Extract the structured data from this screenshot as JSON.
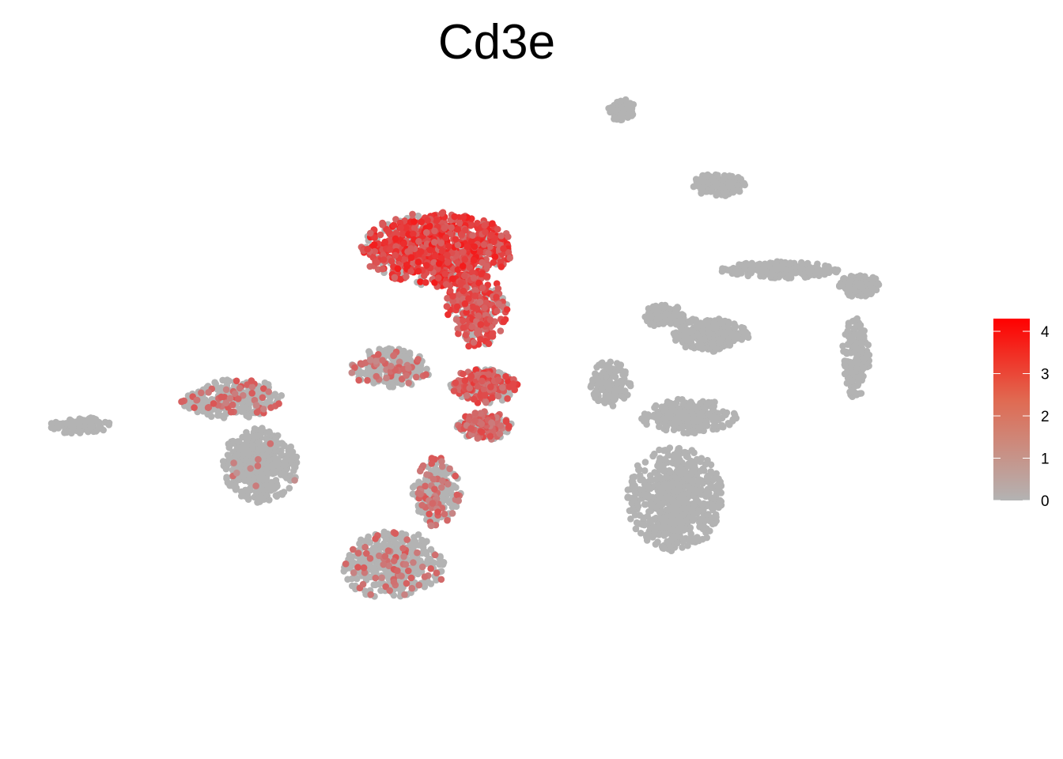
{
  "chart_data": {
    "type": "scatter",
    "title": "Cd3e",
    "xlabel": "",
    "ylabel": "",
    "grid": false,
    "axes_visible": false,
    "legend": {
      "position": "right",
      "type": "colorbar",
      "min": 0,
      "max": 4.3,
      "ticks": [
        0,
        1,
        2,
        3,
        4
      ],
      "tick_labels": [
        "0",
        "1",
        "2",
        "3",
        "4"
      ],
      "low_color": "#b3b3b3",
      "high_color": "#ff0000"
    },
    "xlim": [
      -10,
      12
    ],
    "ylim": [
      -10,
      10
    ],
    "clusters": [
      {
        "name": "",
        "center": [
          -2.2,
          5.2
        ],
        "spread": [
          2.2,
          1.3
        ],
        "n": 900,
        "expr": 3.2,
        "expr_frac": 0.85
      },
      {
        "name": "",
        "center": [
          -1.1,
          3.2
        ],
        "spread": [
          0.9,
          1.3
        ],
        "n": 300,
        "expr": 2.8,
        "expr_frac": 0.7
      },
      {
        "name": "",
        "center": [
          -0.9,
          0.7
        ],
        "spread": [
          1.0,
          0.6
        ],
        "n": 260,
        "expr": 2.6,
        "expr_frac": 0.55
      },
      {
        "name": "",
        "center": [
          -3.5,
          1.3
        ],
        "spread": [
          1.2,
          0.7
        ],
        "n": 260,
        "expr": 1.8,
        "expr_frac": 0.2
      },
      {
        "name": "",
        "center": [
          -0.9,
          -0.6
        ],
        "spread": [
          0.8,
          0.5
        ],
        "n": 160,
        "expr": 2.3,
        "expr_frac": 0.6
      },
      {
        "name": "",
        "center": [
          -3.4,
          -5.2
        ],
        "spread": [
          1.5,
          1.2
        ],
        "n": 420,
        "expr": 2.0,
        "expr_frac": 0.15
      },
      {
        "name": "",
        "center": [
          -2.2,
          -2.8
        ],
        "spread": [
          0.7,
          1.2
        ],
        "n": 240,
        "expr": 2.0,
        "expr_frac": 0.25
      },
      {
        "name": "",
        "center": [
          -7.1,
          -1.9
        ],
        "spread": [
          1.1,
          1.3
        ],
        "n": 480,
        "expr": 1.5,
        "expr_frac": 0.03
      },
      {
        "name": "",
        "center": [
          -7.9,
          0.3
        ],
        "spread": [
          1.5,
          0.7
        ],
        "n": 260,
        "expr": 2.0,
        "expr_frac": 0.2
      },
      {
        "name": "",
        "center": [
          -12.1,
          -0.6
        ],
        "spread": [
          0.9,
          0.3
        ],
        "n": 120,
        "expr": 1.0,
        "expr_frac": 0.0
      },
      {
        "name": "",
        "center": [
          4.4,
          -3.0
        ],
        "spread": [
          1.4,
          1.8
        ],
        "n": 700,
        "expr": 0,
        "expr_frac": 0.0
      },
      {
        "name": "",
        "center": [
          4.8,
          -0.3
        ],
        "spread": [
          1.4,
          0.6
        ],
        "n": 260,
        "expr": 0,
        "expr_frac": 0.0
      },
      {
        "name": "",
        "center": [
          2.6,
          0.8
        ],
        "spread": [
          0.6,
          0.8
        ],
        "n": 150,
        "expr": 0,
        "expr_frac": 0.0
      },
      {
        "name": "",
        "center": [
          5.4,
          2.4
        ],
        "spread": [
          1.1,
          0.6
        ],
        "n": 320,
        "expr": 0,
        "expr_frac": 0.0
      },
      {
        "name": "",
        "center": [
          4.1,
          3.0
        ],
        "spread": [
          0.6,
          0.4
        ],
        "n": 120,
        "expr": 0,
        "expr_frac": 0.0
      },
      {
        "name": "",
        "center": [
          7.3,
          4.5
        ],
        "spread": [
          1.7,
          0.3
        ],
        "n": 260,
        "expr": 0,
        "expr_frac": 0.0
      },
      {
        "name": "",
        "center": [
          9.5,
          4.0
        ],
        "spread": [
          0.6,
          0.4
        ],
        "n": 150,
        "expr": 0,
        "expr_frac": 0.0
      },
      {
        "name": "",
        "center": [
          9.4,
          1.6
        ],
        "spread": [
          0.4,
          1.4
        ],
        "n": 160,
        "expr": 0,
        "expr_frac": 0.0
      },
      {
        "name": "",
        "center": [
          5.6,
          7.3
        ],
        "spread": [
          0.8,
          0.4
        ],
        "n": 150,
        "expr": 0,
        "expr_frac": 0.0
      },
      {
        "name": "",
        "center": [
          2.9,
          9.8
        ],
        "spread": [
          0.4,
          0.4
        ],
        "n": 90,
        "expr": 0,
        "expr_frac": 0.0
      }
    ]
  }
}
